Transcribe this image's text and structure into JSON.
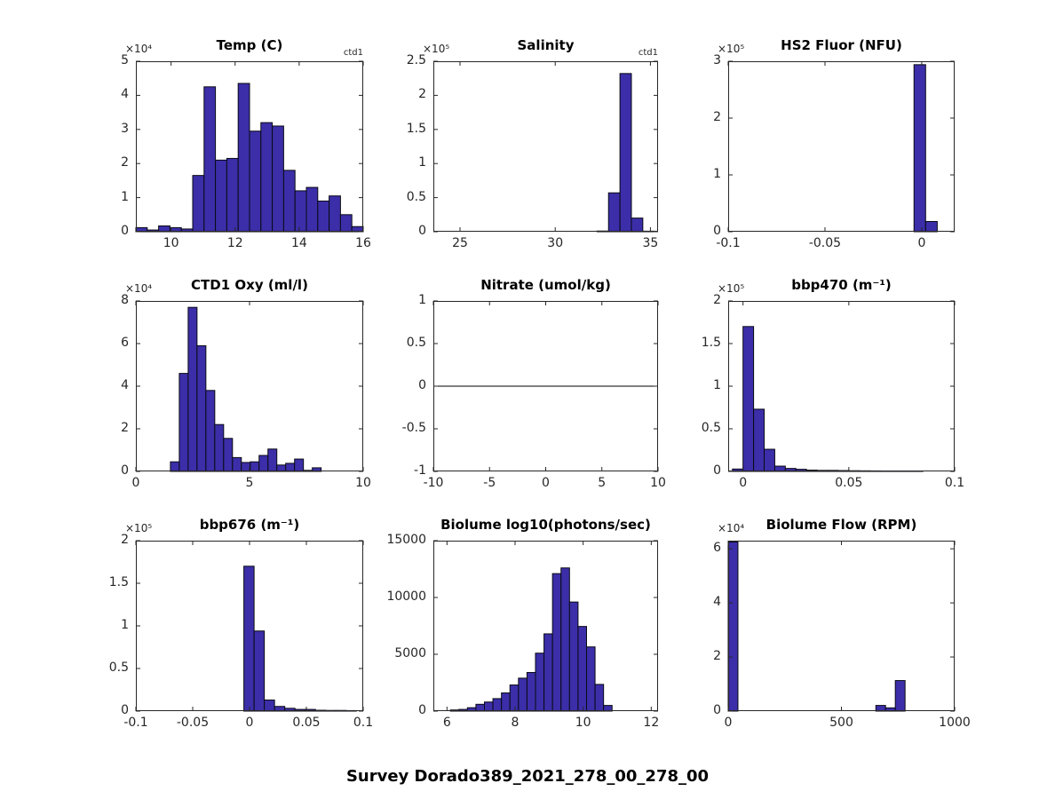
{
  "figure": {
    "title": "Survey Dorado389_2021_278_00_278_00",
    "bar_fill": "#3B2EA8",
    "bar_edge": "#0a0a14",
    "axis_color": "#262626",
    "background": "#ffffff"
  },
  "chart_data": [
    {
      "id": "temp",
      "type": "bar",
      "title": "Temp (C)",
      "annotation": "ctd1",
      "exponent_label": "×10⁴",
      "xlim": [
        8.9,
        16
      ],
      "ylim": [
        0,
        50000
      ],
      "xticks": [
        10,
        12,
        14,
        16
      ],
      "xtick_labels": [
        "10",
        "12",
        "14",
        "16"
      ],
      "yticks": [
        0,
        10000,
        20000,
        30000,
        40000,
        50000
      ],
      "ytick_labels": [
        "0",
        "1",
        "2",
        "3",
        "4",
        "5"
      ],
      "zero_line": false,
      "bars": [
        [
          8.9,
          0.355,
          1200
        ],
        [
          9.255,
          0.355,
          500
        ],
        [
          9.61,
          0.355,
          1700
        ],
        [
          9.965,
          0.355,
          1200
        ],
        [
          10.32,
          0.355,
          800
        ],
        [
          10.675,
          0.355,
          16500
        ],
        [
          11.03,
          0.355,
          42500
        ],
        [
          11.385,
          0.355,
          21000
        ],
        [
          11.74,
          0.355,
          21500
        ],
        [
          12.095,
          0.355,
          43500
        ],
        [
          12.45,
          0.355,
          29500
        ],
        [
          12.805,
          0.355,
          32000
        ],
        [
          13.16,
          0.355,
          31000
        ],
        [
          13.515,
          0.355,
          18000
        ],
        [
          13.87,
          0.355,
          12000
        ],
        [
          14.225,
          0.355,
          13000
        ],
        [
          14.58,
          0.355,
          9000
        ],
        [
          14.935,
          0.355,
          10500
        ],
        [
          15.29,
          0.355,
          5000
        ],
        [
          15.645,
          0.355,
          1500
        ]
      ]
    },
    {
      "id": "salinity",
      "type": "bar",
      "title": "Salinity",
      "annotation": "ctd1",
      "exponent_label": "×10⁵",
      "xlim": [
        23.6,
        35.4
      ],
      "ylim": [
        0,
        250000
      ],
      "xticks": [
        25,
        30,
        35
      ],
      "xtick_labels": [
        "25",
        "30",
        "35"
      ],
      "yticks": [
        0,
        50000,
        100000,
        150000,
        200000,
        250000
      ],
      "ytick_labels": [
        "0",
        "0.5",
        "1",
        "1.5",
        "2",
        "2.5"
      ],
      "zero_line": false,
      "bars": [
        [
          32.2,
          0.6,
          1000
        ],
        [
          32.8,
          0.6,
          57000
        ],
        [
          33.4,
          0.6,
          232000
        ],
        [
          34.0,
          0.6,
          20000
        ],
        [
          34.6,
          0.6,
          800
        ]
      ]
    },
    {
      "id": "hs2fluor",
      "type": "bar",
      "title": "HS2 Fluor (NFU)",
      "annotation": null,
      "exponent_label": "×10⁵",
      "xlim": [
        -0.1,
        0.017
      ],
      "ylim": [
        0,
        300000
      ],
      "xticks": [
        -0.1,
        -0.05,
        0
      ],
      "xtick_labels": [
        "-0.1",
        "-0.05",
        "0"
      ],
      "yticks": [
        0,
        100000,
        200000,
        300000
      ],
      "ytick_labels": [
        "0",
        "1",
        "2",
        "3"
      ],
      "zero_line": false,
      "bars": [
        [
          -0.004,
          0.006,
          294000
        ],
        [
          0.002,
          0.006,
          18000
        ]
      ]
    },
    {
      "id": "ctd1oxy",
      "type": "bar",
      "title": "CTD1 Oxy (ml/l)",
      "annotation": null,
      "exponent_label": "×10⁴",
      "xlim": [
        0,
        10
      ],
      "ylim": [
        0,
        80000
      ],
      "xticks": [
        0,
        5,
        10
      ],
      "xtick_labels": [
        "0",
        "5",
        "10"
      ],
      "yticks": [
        0,
        20000,
        40000,
        60000,
        80000
      ],
      "ytick_labels": [
        "0",
        "2",
        "4",
        "6",
        "8"
      ],
      "zero_line": false,
      "bars": [
        [
          1.52,
          0.39,
          4500
        ],
        [
          1.91,
          0.39,
          46000
        ],
        [
          2.3,
          0.39,
          77000
        ],
        [
          2.69,
          0.39,
          59000
        ],
        [
          3.08,
          0.39,
          38000
        ],
        [
          3.47,
          0.39,
          22000
        ],
        [
          3.86,
          0.39,
          15500
        ],
        [
          4.25,
          0.39,
          6500
        ],
        [
          4.64,
          0.39,
          4200
        ],
        [
          5.03,
          0.39,
          4500
        ],
        [
          5.42,
          0.39,
          7500
        ],
        [
          5.81,
          0.39,
          10500
        ],
        [
          6.2,
          0.39,
          3000
        ],
        [
          6.59,
          0.39,
          3800
        ],
        [
          6.98,
          0.39,
          5800
        ],
        [
          7.37,
          0.39,
          500
        ],
        [
          7.76,
          0.39,
          1700
        ]
      ]
    },
    {
      "id": "nitrate",
      "type": "line",
      "title": "Nitrate (umol/kg)",
      "annotation": null,
      "exponent_label": null,
      "xlim": [
        -10,
        10
      ],
      "ylim": [
        -1,
        1
      ],
      "xticks": [
        -10,
        -5,
        0,
        5,
        10
      ],
      "xtick_labels": [
        "-10",
        "-5",
        "0",
        "5",
        "10"
      ],
      "yticks": [
        -1,
        -0.5,
        0,
        0.5,
        1
      ],
      "ytick_labels": [
        "-1",
        "-0.5",
        "0",
        "0.5",
        "1"
      ],
      "zero_line": true,
      "bars": []
    },
    {
      "id": "bbp470",
      "type": "bar",
      "title": "bbp470 (m⁻¹)",
      "annotation": null,
      "exponent_label": "×10⁵",
      "xlim": [
        -0.007,
        0.1
      ],
      "ylim": [
        0,
        200000
      ],
      "xticks": [
        0,
        0.05,
        0.1
      ],
      "xtick_labels": [
        "0",
        "0.05",
        "0.1"
      ],
      "yticks": [
        0,
        50000,
        100000,
        150000,
        200000
      ],
      "ytick_labels": [
        "0",
        "0.5",
        "1",
        "1.5",
        "2"
      ],
      "zero_line": false,
      "bars": [
        [
          -0.005,
          0.005,
          2800
        ],
        [
          0.0,
          0.005,
          170000
        ],
        [
          0.005,
          0.005,
          73000
        ],
        [
          0.01,
          0.005,
          26000
        ],
        [
          0.015,
          0.005,
          6200
        ],
        [
          0.02,
          0.005,
          3500
        ],
        [
          0.025,
          0.005,
          2500
        ],
        [
          0.03,
          0.005,
          1500
        ],
        [
          0.035,
          0.005,
          1200
        ],
        [
          0.04,
          0.005,
          1200
        ],
        [
          0.045,
          0.005,
          1000
        ],
        [
          0.05,
          0.005,
          800
        ],
        [
          0.055,
          0.005,
          700
        ],
        [
          0.06,
          0.005,
          600
        ],
        [
          0.065,
          0.005,
          500
        ],
        [
          0.07,
          0.005,
          400
        ],
        [
          0.075,
          0.005,
          400
        ],
        [
          0.08,
          0.005,
          300
        ]
      ]
    },
    {
      "id": "bbp676",
      "type": "bar",
      "title": "bbp676 (m⁻¹)",
      "annotation": null,
      "exponent_label": "×10⁵",
      "xlim": [
        -0.1,
        0.1
      ],
      "ylim": [
        0,
        200000
      ],
      "xticks": [
        -0.1,
        -0.05,
        0,
        0.05,
        0.1
      ],
      "xtick_labels": [
        "-0.1",
        "-0.05",
        "0",
        "0.05",
        "0.1"
      ],
      "yticks": [
        0,
        50000,
        100000,
        150000,
        200000
      ],
      "ytick_labels": [
        "0",
        "0.5",
        "1",
        "1.5",
        "2"
      ],
      "zero_line": false,
      "bars": [
        [
          -0.005,
          0.009,
          170000
        ],
        [
          0.004,
          0.009,
          94000
        ],
        [
          0.013,
          0.009,
          13000
        ],
        [
          0.022,
          0.009,
          5500
        ],
        [
          0.031,
          0.009,
          3300
        ],
        [
          0.04,
          0.009,
          2000
        ],
        [
          0.049,
          0.009,
          2000
        ],
        [
          0.058,
          0.009,
          1000
        ],
        [
          0.067,
          0.009,
          800
        ],
        [
          0.076,
          0.009,
          800
        ],
        [
          0.085,
          0.009,
          600
        ]
      ]
    },
    {
      "id": "biolume",
      "type": "bar",
      "title": "Biolume log10(photons/sec)",
      "annotation": null,
      "exponent_label": null,
      "xlim": [
        5.6,
        12.2
      ],
      "ylim": [
        0,
        15000
      ],
      "xticks": [
        6,
        8,
        10,
        12
      ],
      "xtick_labels": [
        "6",
        "8",
        "10",
        "12"
      ],
      "yticks": [
        0,
        5000,
        10000,
        15000
      ],
      "ytick_labels": [
        "0",
        "5000",
        "10000",
        "15000"
      ],
      "zero_line": false,
      "bars": [
        [
          6.1,
          0.25,
          100
        ],
        [
          6.35,
          0.25,
          150
        ],
        [
          6.6,
          0.25,
          300
        ],
        [
          6.85,
          0.25,
          600
        ],
        [
          7.1,
          0.25,
          800
        ],
        [
          7.35,
          0.25,
          1100
        ],
        [
          7.6,
          0.25,
          1600
        ],
        [
          7.85,
          0.25,
          2300
        ],
        [
          8.1,
          0.25,
          2900
        ],
        [
          8.35,
          0.25,
          3400
        ],
        [
          8.6,
          0.25,
          5100
        ],
        [
          8.85,
          0.25,
          6800
        ],
        [
          9.1,
          0.25,
          12100
        ],
        [
          9.35,
          0.25,
          12600
        ],
        [
          9.6,
          0.25,
          9600
        ],
        [
          9.85,
          0.25,
          7450
        ],
        [
          10.1,
          0.25,
          5650
        ],
        [
          10.35,
          0.25,
          2350
        ],
        [
          10.6,
          0.25,
          500
        ]
      ]
    },
    {
      "id": "biolumeflow",
      "type": "bar",
      "title": "Biolume Flow (RPM)",
      "annotation": null,
      "exponent_label": "×10⁴",
      "xlim": [
        0,
        1000
      ],
      "ylim": [
        0,
        63000
      ],
      "xticks": [
        0,
        500,
        1000
      ],
      "xtick_labels": [
        "0",
        "500",
        "1000"
      ],
      "yticks": [
        0,
        20000,
        40000,
        60000
      ],
      "ytick_labels": [
        "0",
        "2",
        "4",
        "6"
      ],
      "zero_line": false,
      "bars": [
        [
          0,
          43,
          62500
        ],
        [
          652,
          43,
          2100
        ],
        [
          695,
          43,
          1200
        ],
        [
          738,
          43,
          11300
        ]
      ]
    }
  ]
}
